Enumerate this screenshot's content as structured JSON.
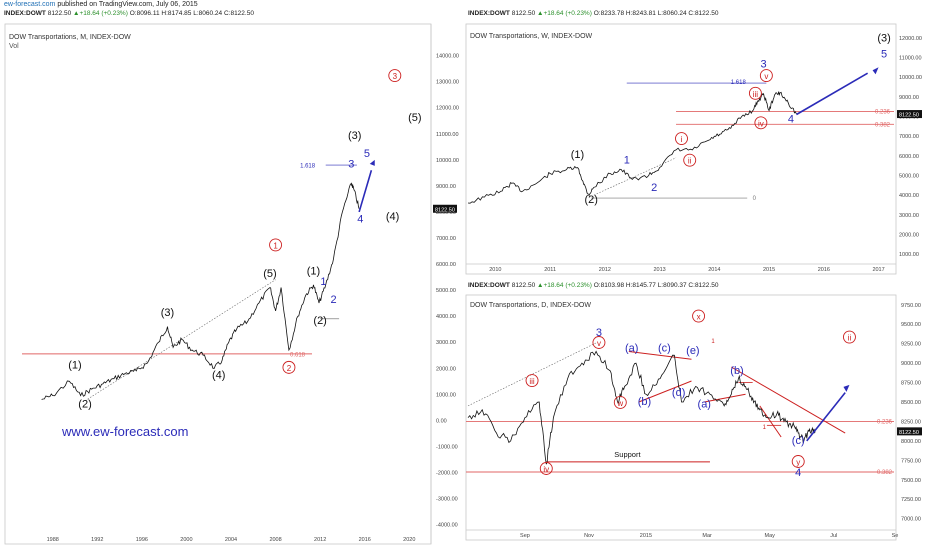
{
  "header": {
    "source": "ew-forecast.com",
    "published": "published on TradingView.com, July 06, 2015"
  },
  "quote": {
    "symbol": "INDEX:DOWT",
    "price": "8122.50",
    "change": "+18.64 (+0.23%)"
  },
  "colors": {
    "blue": "#2b2bb8",
    "red": "#cc1f1f",
    "black": "#111111",
    "fib_line": "#e06666"
  },
  "watermark": "www.ew-forecast.com",
  "chart_data": [
    {
      "id": "monthly",
      "type": "line",
      "title": "DOW Transportations, M, INDEX-DOW",
      "subtitle": "Vol",
      "ohlc": {
        "O": "8096.11",
        "H": "8174.85",
        "L": "8060.24",
        "C": "8122.50"
      },
      "x_ticks": [
        "1988",
        "1992",
        "1996",
        "2000",
        "2004",
        "2008",
        "2012",
        "2016",
        "2020"
      ],
      "y_ticks": [
        "14000.00",
        "13000.00",
        "12000.00",
        "11000.00",
        "10000.00",
        "9000.00",
        "8000.00",
        "7000.00",
        "6000.00",
        "5000.00",
        "4000.00",
        "3000.00",
        "2000.00",
        "1000.00",
        "0.00",
        "-1000.00",
        "-2000.00",
        "-3000.00",
        "-4000.00"
      ],
      "ylim": [
        -4400,
        14600
      ],
      "price_tag": "8122.50",
      "series": [
        {
          "x": [
            1987.0,
            1988.0,
            1989.5,
            1990.5,
            1991.5,
            1992.5,
            1993.5,
            1994.5,
            1995.5,
            1996.5,
            1997.5,
            1998.3,
            1998.8,
            1999.6,
            2000.5,
            2001.5,
            2002.5,
            2003.2,
            2003.8,
            2004.5,
            2005.5,
            2006.5,
            2007.5,
            2008.0,
            2008.5,
            2009.2,
            2010.0,
            2010.7,
            2011.4,
            2011.9,
            2012.5,
            2013.2,
            2014.0,
            2014.8,
            2015.0,
            2015.5
          ],
          "y": [
            800,
            950,
            1500,
            950,
            1200,
            1400,
            1600,
            1800,
            1900,
            2200,
            3000,
            3600,
            2800,
            3100,
            2700,
            2500,
            2000,
            2300,
            3000,
            3500,
            3800,
            4500,
            5100,
            4200,
            5100,
            2700,
            4000,
            4800,
            5200,
            4500,
            5200,
            6200,
            8000,
            9100,
            8900,
            8122
          ]
        }
      ],
      "wave_labels": [
        {
          "t": "(1)",
          "x": 1990.0,
          "y": 2000,
          "color": "black"
        },
        {
          "t": "(2)",
          "x": 1990.9,
          "y": 500,
          "color": "black"
        },
        {
          "t": "(3)",
          "x": 1998.3,
          "y": 4000,
          "color": "black"
        },
        {
          "t": "(4)",
          "x": 2002.9,
          "y": 1600,
          "color": "black"
        },
        {
          "t": "(5)",
          "x": 2007.5,
          "y": 5500,
          "color": "black"
        },
        {
          "t": "(1)",
          "x": 2011.4,
          "y": 5600,
          "color": "black"
        },
        {
          "t": "(2)",
          "x": 2012.0,
          "y": 3700,
          "color": "black"
        },
        {
          "t": "(3)",
          "x": 2015.1,
          "y": 10800,
          "color": "black"
        },
        {
          "t": "(4)",
          "x": 2018.5,
          "y": 7700,
          "color": "black"
        },
        {
          "t": "(5)",
          "x": 2020.5,
          "y": 11500,
          "color": "black"
        },
        {
          "t": "1",
          "x": 2012.3,
          "y": 5200,
          "color": "blue"
        },
        {
          "t": "2",
          "x": 2013.2,
          "y": 4500,
          "color": "blue"
        },
        {
          "t": "3",
          "x": 2014.8,
          "y": 9700,
          "color": "blue"
        },
        {
          "t": "4",
          "x": 2015.6,
          "y": 7600,
          "color": "blue"
        },
        {
          "t": "5",
          "x": 2016.2,
          "y": 10100,
          "color": "blue"
        }
      ],
      "circled_labels": [
        {
          "t": "1",
          "x": 2008.0,
          "y": 6600,
          "color": "red"
        },
        {
          "t": "2",
          "x": 2009.2,
          "y": 1900,
          "color": "red"
        },
        {
          "t": "3",
          "x": 2018.7,
          "y": 13100,
          "color": "red"
        }
      ],
      "fib_ratios": [
        "1.618",
        "0.618"
      ]
    },
    {
      "id": "weekly",
      "type": "line",
      "title": "DOW Transportations, W, INDEX-DOW",
      "ohlc": {
        "O": "8233.78",
        "H": "8243.81",
        "L": "8060.24",
        "C": "8122.50"
      },
      "x_ticks": [
        "2010",
        "2011",
        "2012",
        "2013",
        "2014",
        "2015",
        "2016",
        "2017"
      ],
      "y_ticks": [
        "12000.00",
        "11000.00",
        "10000.00",
        "9000.00",
        "8000.00",
        "7000.00",
        "6000.00",
        "5000.00",
        "4000.00",
        "3000.00",
        "2000.00",
        "1000.00"
      ],
      "ylim": [
        600,
        12600
      ],
      "price_tag": "8122.50",
      "fib_ratios": [
        "1.618",
        "0",
        "0.236",
        "0.382"
      ],
      "series": [
        {
          "x": [
            2009.5,
            2009.8,
            2010.1,
            2010.3,
            2010.5,
            2010.8,
            2011.0,
            2011.3,
            2011.5,
            2011.6,
            2011.7,
            2011.8,
            2012.1,
            2012.3,
            2012.5,
            2012.8,
            2013.0,
            2013.3,
            2013.6,
            2013.9,
            2014.1,
            2014.3,
            2014.5,
            2014.7,
            2014.8,
            2014.9,
            2015.0,
            2015.1,
            2015.2,
            2015.35,
            2015.5
          ],
          "y": [
            3600,
            3900,
            4200,
            4600,
            4200,
            4700,
            5100,
            5300,
            5400,
            4700,
            4000,
            4400,
            5100,
            5300,
            4800,
            5000,
            5400,
            6300,
            6300,
            6800,
            7100,
            7400,
            8000,
            8300,
            8800,
            9150,
            8300,
            9100,
            9200,
            8700,
            8120
          ]
        }
      ],
      "wave_labels": [
        {
          "t": "(1)",
          "x": 2011.5,
          "y": 5900,
          "color": "black"
        },
        {
          "t": "(2)",
          "x": 2011.75,
          "y": 3600,
          "color": "black"
        },
        {
          "t": "(3)",
          "x": 2017.1,
          "y": 11800,
          "color": "black"
        },
        {
          "t": "1",
          "x": 2012.4,
          "y": 5600,
          "color": "blue"
        },
        {
          "t": "2",
          "x": 2012.9,
          "y": 4200,
          "color": "blue"
        },
        {
          "t": "3",
          "x": 2014.9,
          "y": 10500,
          "color": "blue"
        },
        {
          "t": "4",
          "x": 2015.4,
          "y": 7700,
          "color": "blue"
        },
        {
          "t": "5",
          "x": 2017.1,
          "y": 11000,
          "color": "blue"
        }
      ],
      "circled_labels": [
        {
          "t": "i",
          "x": 2013.4,
          "y": 6700,
          "color": "red"
        },
        {
          "t": "ii",
          "x": 2013.55,
          "y": 5600,
          "color": "red"
        },
        {
          "t": "iii",
          "x": 2014.75,
          "y": 9000,
          "color": "red"
        },
        {
          "t": "iv",
          "x": 2014.85,
          "y": 7500,
          "color": "red"
        },
        {
          "t": "v",
          "x": 2014.95,
          "y": 9900,
          "color": "red"
        }
      ]
    },
    {
      "id": "daily",
      "type": "line",
      "title": "DOW Transportations, D, INDEX-DOW",
      "ohlc": {
        "O": "8103.98",
        "H": "8145.77",
        "L": "8090.37",
        "C": "8122.50"
      },
      "x_ticks": [
        "Sep",
        "Nov",
        "2015",
        "Mar",
        "May",
        "Jul",
        "Se"
      ],
      "y_ticks": [
        "9750.00",
        "9500.00",
        "9250.00",
        "9000.00",
        "8750.00",
        "8500.00",
        "8250.00",
        "8000.00",
        "7750.00",
        "7500.00",
        "7250.00",
        "7000.00"
      ],
      "ylim": [
        6880,
        9850
      ],
      "price_tag": "8122.50",
      "fib_ratios": [
        "0.236",
        "0.382"
      ],
      "support_label": "Support",
      "series": [
        {
          "x": [
            0,
            10,
            20,
            30,
            40,
            50,
            55,
            60,
            70,
            80,
            90,
            100,
            105,
            110,
            118,
            125,
            135,
            145,
            150,
            160,
            170,
            180,
            185,
            190,
            195,
            200,
            205,
            210,
            217,
            222,
            228,
            232,
            236,
            240,
            244
          ],
          "y": [
            8300,
            8400,
            8100,
            8000,
            8300,
            8500,
            7700,
            8300,
            8800,
            9000,
            9150,
            8900,
            8500,
            8700,
            9000,
            8600,
            8800,
            9100,
            8500,
            8700,
            8600,
            8450,
            8600,
            8800,
            8700,
            8550,
            8400,
            8300,
            8350,
            8250,
            8200,
            8100,
            8000,
            8150,
            8120
          ]
        }
      ],
      "wave_labels": [
        {
          "t": "3",
          "x": 92,
          "y": 9350,
          "color": "blue"
        },
        {
          "t": "4",
          "x": 232,
          "y": 7550,
          "color": "blue"
        },
        {
          "t": "(a)",
          "x": 115,
          "y": 9150,
          "color": "blue"
        },
        {
          "t": "(b)",
          "x": 124,
          "y": 8460,
          "color": "blue"
        },
        {
          "t": "(c)",
          "x": 138,
          "y": 9150,
          "color": "blue"
        },
        {
          "t": "(d)",
          "x": 148,
          "y": 8580,
          "color": "blue"
        },
        {
          "t": "(e)",
          "x": 158,
          "y": 9120,
          "color": "blue"
        },
        {
          "t": "(a)",
          "x": 166,
          "y": 8430,
          "color": "blue"
        },
        {
          "t": "(b)",
          "x": 189,
          "y": 8860,
          "color": "blue"
        },
        {
          "t": "(c)",
          "x": 232,
          "y": 7960,
          "color": "blue"
        }
      ],
      "circled_labels": [
        {
          "t": "iii",
          "x": 45,
          "y": 8730,
          "color": "red"
        },
        {
          "t": "iv",
          "x": 55,
          "y": 7600,
          "color": "red"
        },
        {
          "t": "v",
          "x": 92,
          "y": 9220,
          "color": "red"
        },
        {
          "t": "w",
          "x": 107,
          "y": 8450,
          "color": "red"
        },
        {
          "t": "x",
          "x": 162,
          "y": 9560,
          "color": "red"
        },
        {
          "t": "y",
          "x": 232,
          "y": 7690,
          "color": "red"
        },
        {
          "t": "ii",
          "x": 268,
          "y": 9290,
          "color": "red"
        }
      ],
      "small_marks": [
        {
          "t": "1",
          "x": 171,
          "y": 9260,
          "color": "red"
        },
        {
          "t": "1",
          "x": 207,
          "y": 8150,
          "color": "red"
        }
      ]
    }
  ]
}
